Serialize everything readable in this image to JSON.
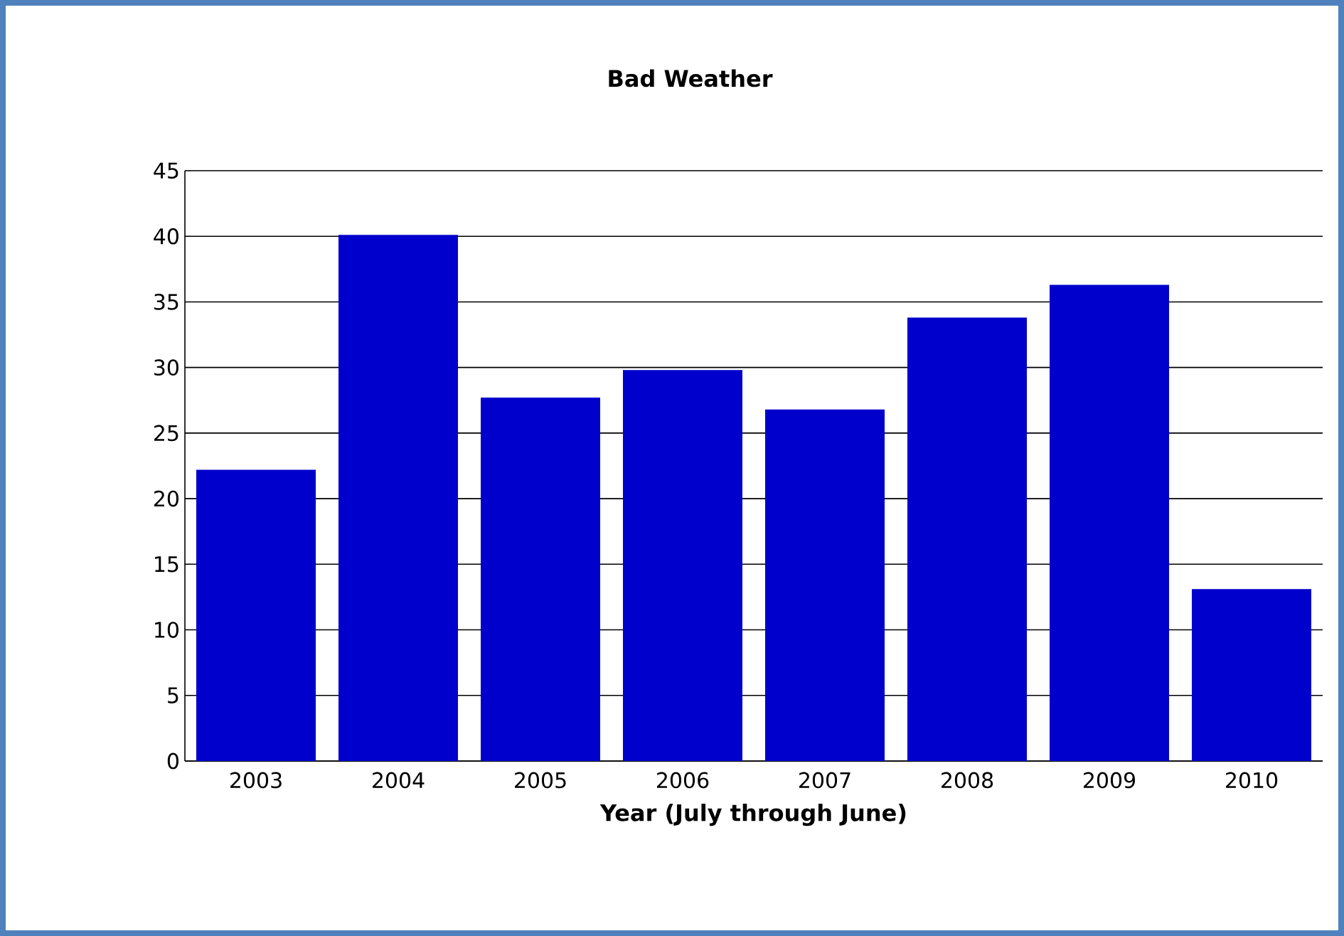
{
  "chart_data": {
    "type": "bar",
    "title": "Bad Weather",
    "xlabel": "Year (July through June)",
    "categories": [
      "2003",
      "2004",
      "2005",
      "2006",
      "2007",
      "2008",
      "2009",
      "2010"
    ],
    "values": [
      22.2,
      40.1,
      27.7,
      29.8,
      26.8,
      33.8,
      36.3,
      13.1
    ],
    "color": "#0000cc",
    "ylim": [
      0,
      45
    ],
    "yticks": [
      0,
      5,
      10,
      15,
      20,
      25,
      30,
      35,
      40,
      45
    ],
    "grid": "y"
  }
}
